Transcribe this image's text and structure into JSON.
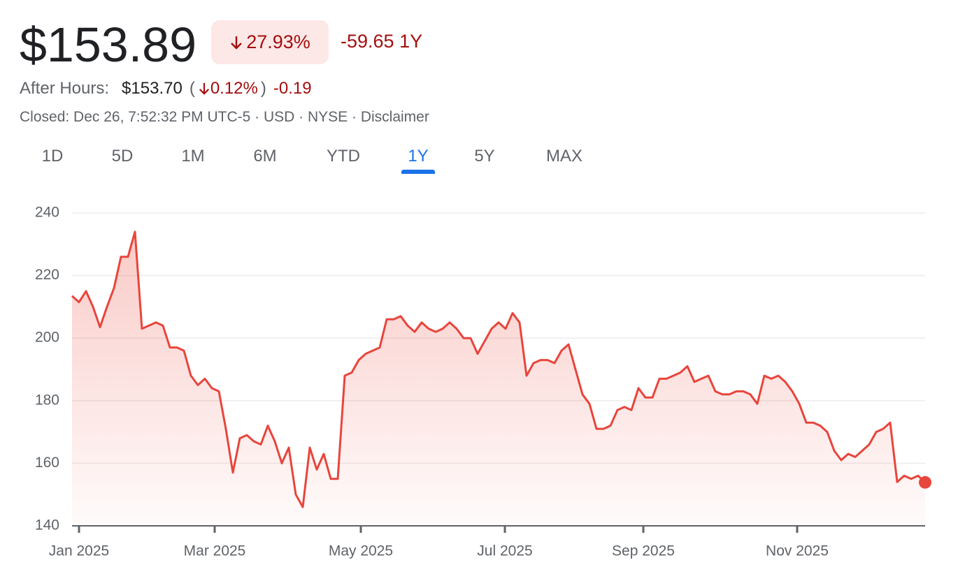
{
  "header": {
    "price": "$153.89",
    "change_pct": "27.93%",
    "change_abs": "-59.65",
    "change_period": "1Y",
    "after_hours_label": "After Hours:",
    "after_hours_price": "$153.70",
    "after_hours_change_pct": "0.12%",
    "after_hours_change_abs": "-0.19",
    "status": "Closed: Dec 26, 7:52:32 PM UTC-5 · USD · NYSE · Disclaimer"
  },
  "tabs": {
    "items": [
      "1D",
      "5D",
      "1M",
      "6M",
      "YTD",
      "1Y",
      "5Y",
      "MAX"
    ],
    "selected": 5
  },
  "chart_data": {
    "type": "area",
    "color": "#e8453c",
    "grid": true,
    "values": [
      213.5,
      211.5,
      215,
      210,
      203.5,
      210,
      216,
      226,
      226,
      234,
      203,
      204,
      205,
      204,
      197,
      197,
      196,
      188,
      185,
      187,
      184,
      183,
      171,
      157,
      168,
      169,
      167,
      166,
      172,
      167,
      160,
      165,
      150,
      146,
      165,
      158,
      163,
      155,
      155,
      188,
      189,
      193,
      195,
      196,
      197,
      206,
      206,
      207,
      204,
      202,
      205,
      203,
      202,
      203,
      205,
      203,
      200,
      200,
      195,
      199,
      203,
      205,
      203,
      208,
      205,
      188,
      192,
      193,
      193,
      192,
      196,
      198,
      190,
      182,
      179,
      171,
      171,
      172,
      177,
      178,
      177,
      184,
      181,
      181,
      187,
      187,
      188,
      189,
      191,
      186,
      187,
      188,
      183,
      182,
      182,
      183,
      183,
      182,
      179,
      188,
      187,
      188,
      186,
      183,
      179,
      173,
      173,
      172,
      170,
      164,
      161,
      163,
      162,
      164,
      166,
      170,
      171,
      173,
      154,
      156,
      155,
      156,
      153.89
    ],
    "xlim": [
      0,
      122
    ],
    "xticks": [
      {
        "value": 1,
        "label": "Jan 2025"
      },
      {
        "value": 20.4,
        "label": "Mar 2025"
      },
      {
        "value": 41.3,
        "label": "May 2025"
      },
      {
        "value": 61.9,
        "label": "Jul 2025"
      },
      {
        "value": 81.7,
        "label": "Sep 2025"
      },
      {
        "value": 103.7,
        "label": "Nov 2025"
      }
    ],
    "ylim": [
      140,
      240
    ],
    "yticks": [
      140,
      160,
      180,
      200,
      220,
      240
    ]
  }
}
